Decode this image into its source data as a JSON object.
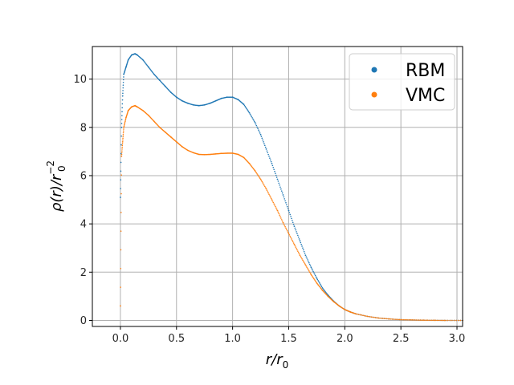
{
  "chart_data": {
    "type": "scatter",
    "title": "",
    "xlabel_main": "r/r",
    "xlabel_sub": "0",
    "ylabel_main": "ρ(r)/r",
    "ylabel_sub": "0",
    "ylabel_sup": "−2",
    "xlim": [
      -0.25,
      3.05
    ],
    "ylim": [
      -0.25,
      11.35
    ],
    "x_ticks": [
      0.0,
      0.5,
      1.0,
      1.5,
      2.0,
      2.5,
      3.0
    ],
    "x_tick_labels": [
      "0.0",
      "0.5",
      "1.0",
      "1.5",
      "2.0",
      "2.5",
      "3.0"
    ],
    "y_ticks": [
      0,
      2,
      4,
      6,
      8,
      10
    ],
    "y_tick_labels": [
      "0",
      "2",
      "4",
      "6",
      "8",
      "10"
    ],
    "grid": true,
    "legend_position": "top-right",
    "series": [
      {
        "name": "RBM",
        "color": "#1f77b4",
        "points": [
          [
            0.0,
            5.1
          ],
          [
            0.01,
            8.0
          ],
          [
            0.02,
            9.3
          ],
          [
            0.03,
            10.2
          ],
          [
            0.05,
            10.5
          ],
          [
            0.07,
            10.8
          ],
          [
            0.1,
            11.0
          ],
          [
            0.13,
            11.05
          ],
          [
            0.15,
            11.0
          ],
          [
            0.2,
            10.8
          ],
          [
            0.25,
            10.5
          ],
          [
            0.3,
            10.2
          ],
          [
            0.35,
            9.95
          ],
          [
            0.4,
            9.7
          ],
          [
            0.45,
            9.45
          ],
          [
            0.5,
            9.25
          ],
          [
            0.55,
            9.1
          ],
          [
            0.6,
            9.0
          ],
          [
            0.65,
            8.93
          ],
          [
            0.7,
            8.9
          ],
          [
            0.75,
            8.93
          ],
          [
            0.8,
            9.0
          ],
          [
            0.85,
            9.1
          ],
          [
            0.9,
            9.2
          ],
          [
            0.95,
            9.25
          ],
          [
            1.0,
            9.25
          ],
          [
            1.05,
            9.15
          ],
          [
            1.1,
            8.95
          ],
          [
            1.15,
            8.6
          ],
          [
            1.2,
            8.2
          ],
          [
            1.25,
            7.7
          ],
          [
            1.3,
            7.1
          ],
          [
            1.35,
            6.5
          ],
          [
            1.4,
            5.85
          ],
          [
            1.45,
            5.2
          ],
          [
            1.5,
            4.55
          ],
          [
            1.55,
            3.9
          ],
          [
            1.6,
            3.3
          ],
          [
            1.65,
            2.7
          ],
          [
            1.7,
            2.2
          ],
          [
            1.75,
            1.75
          ],
          [
            1.8,
            1.35
          ],
          [
            1.85,
            1.05
          ],
          [
            1.9,
            0.8
          ],
          [
            1.95,
            0.6
          ],
          [
            2.0,
            0.45
          ],
          [
            2.05,
            0.35
          ],
          [
            2.1,
            0.27
          ],
          [
            2.2,
            0.17
          ],
          [
            2.3,
            0.1
          ],
          [
            2.4,
            0.06
          ],
          [
            2.5,
            0.03
          ],
          [
            2.6,
            0.02
          ],
          [
            2.7,
            0.01
          ],
          [
            2.8,
            0.005
          ],
          [
            2.9,
            0.0
          ],
          [
            3.05,
            0.0
          ]
        ]
      },
      {
        "name": "VMC",
        "color": "#ff7f0e",
        "points": [
          [
            0.0,
            0.6
          ],
          [
            0.01,
            6.8
          ],
          [
            0.02,
            7.4
          ],
          [
            0.03,
            8.0
          ],
          [
            0.05,
            8.4
          ],
          [
            0.07,
            8.7
          ],
          [
            0.1,
            8.85
          ],
          [
            0.13,
            8.9
          ],
          [
            0.15,
            8.85
          ],
          [
            0.2,
            8.7
          ],
          [
            0.25,
            8.5
          ],
          [
            0.3,
            8.25
          ],
          [
            0.35,
            8.0
          ],
          [
            0.4,
            7.8
          ],
          [
            0.45,
            7.6
          ],
          [
            0.5,
            7.4
          ],
          [
            0.55,
            7.2
          ],
          [
            0.6,
            7.05
          ],
          [
            0.65,
            6.95
          ],
          [
            0.7,
            6.88
          ],
          [
            0.75,
            6.87
          ],
          [
            0.8,
            6.88
          ],
          [
            0.85,
            6.9
          ],
          [
            0.9,
            6.92
          ],
          [
            0.95,
            6.93
          ],
          [
            1.0,
            6.93
          ],
          [
            1.05,
            6.88
          ],
          [
            1.1,
            6.75
          ],
          [
            1.15,
            6.5
          ],
          [
            1.2,
            6.2
          ],
          [
            1.25,
            5.85
          ],
          [
            1.3,
            5.45
          ],
          [
            1.35,
            5.0
          ],
          [
            1.4,
            4.55
          ],
          [
            1.45,
            4.05
          ],
          [
            1.5,
            3.6
          ],
          [
            1.55,
            3.15
          ],
          [
            1.6,
            2.7
          ],
          [
            1.65,
            2.3
          ],
          [
            1.7,
            1.9
          ],
          [
            1.75,
            1.55
          ],
          [
            1.8,
            1.25
          ],
          [
            1.85,
            1.0
          ],
          [
            1.9,
            0.78
          ],
          [
            1.95,
            0.6
          ],
          [
            2.0,
            0.45
          ],
          [
            2.05,
            0.35
          ],
          [
            2.1,
            0.27
          ],
          [
            2.2,
            0.17
          ],
          [
            2.3,
            0.1
          ],
          [
            2.4,
            0.06
          ],
          [
            2.5,
            0.03
          ],
          [
            2.6,
            0.02
          ],
          [
            2.7,
            0.01
          ],
          [
            2.8,
            0.005
          ],
          [
            2.9,
            0.0
          ],
          [
            3.05,
            0.0
          ]
        ]
      }
    ]
  }
}
